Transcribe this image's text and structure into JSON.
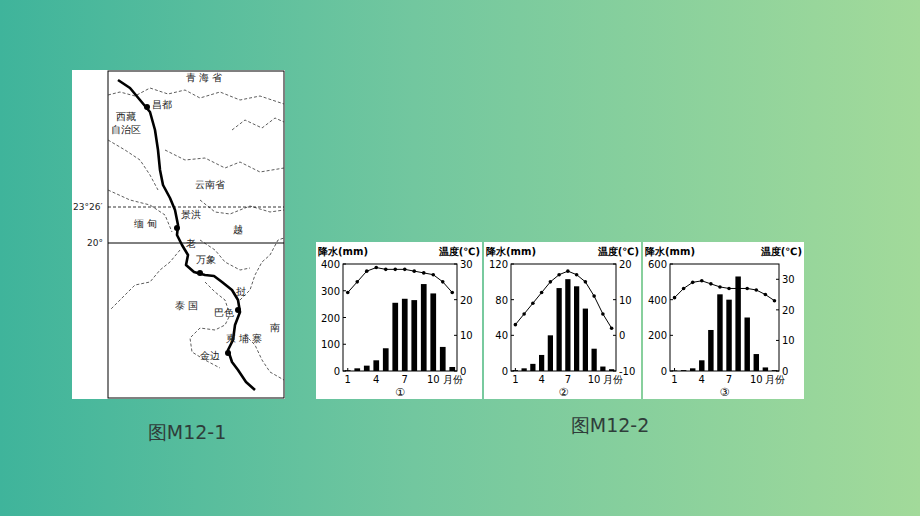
{
  "captions": [
    "图M12-1",
    "图M12-2"
  ],
  "map": {
    "labels": [
      "青 海 省",
      "昌都",
      "西藏",
      "自治区",
      "云南省",
      "缅 甸",
      "景洪",
      "越",
      "老",
      "万象",
      "泰 国",
      "挝",
      "巴色",
      "柬 埔 寨",
      "南",
      "金边"
    ],
    "latitudes": [
      "23°26′",
      "20°"
    ]
  },
  "chart_data": [
    {
      "type": "bar",
      "title": "①",
      "ylabel": "降水(mm)",
      "y2label": "温度(℃)",
      "xlabel": "月份",
      "categories": [
        "1",
        null,
        null,
        "4",
        null,
        null,
        "7",
        null,
        null,
        "10",
        null,
        null
      ],
      "ylim": [
        0,
        400
      ],
      "yticks": [
        0,
        100,
        200,
        300,
        400
      ],
      "y2lim": [
        0,
        30
      ],
      "y2ticks": [
        0,
        10,
        20,
        30
      ],
      "series": [
        {
          "name": "降水",
          "type": "bar",
          "color": "#000000",
          "values": [
            3,
            10,
            20,
            40,
            85,
            255,
            270,
            265,
            325,
            290,
            90,
            15
          ]
        },
        {
          "name": "温度",
          "type": "line",
          "axis": "y2",
          "color": "#000000",
          "marker": "circle",
          "values": [
            22,
            25,
            28,
            29,
            28.5,
            28.5,
            28.5,
            28,
            27.5,
            27,
            25,
            22
          ]
        }
      ]
    },
    {
      "type": "bar",
      "title": "②",
      "ylabel": "降水(mm)",
      "y2label": "温度(℃)",
      "xlabel": "月份",
      "categories": [
        "1",
        null,
        null,
        "4",
        null,
        null,
        "7",
        null,
        null,
        "10",
        null,
        null
      ],
      "ylim": [
        0,
        120
      ],
      "yticks": [
        0,
        40,
        80,
        120
      ],
      "y2lim": [
        -10,
        20
      ],
      "y2ticks": [
        -10,
        0,
        10,
        20
      ],
      "series": [
        {
          "name": "降水",
          "type": "bar",
          "color": "#000000",
          "values": [
            1,
            3,
            8,
            18,
            40,
            93,
            103,
            95,
            70,
            25,
            5,
            2
          ]
        },
        {
          "name": "温度",
          "type": "line",
          "axis": "y2",
          "color": "#000000",
          "marker": "circle",
          "values": [
            3,
            6,
            9,
            12,
            15,
            17,
            18,
            17,
            15,
            11,
            6,
            2
          ]
        }
      ]
    },
    {
      "type": "bar",
      "title": "③",
      "ylabel": "降水(mm)",
      "y2label": "温度(℃)",
      "xlabel": "月份",
      "categories": [
        "1",
        null,
        null,
        "4",
        null,
        null,
        "7",
        null,
        null,
        "10",
        null,
        null
      ],
      "ylim": [
        0,
        600
      ],
      "yticks": [
        0,
        200,
        400,
        600
      ],
      "y2lim": [
        0,
        35
      ],
      "y2ticks": [
        0,
        10,
        20,
        30
      ],
      "series": [
        {
          "name": "降水",
          "type": "bar",
          "color": "#000000",
          "values": [
            3,
            5,
            15,
            60,
            230,
            430,
            400,
            530,
            300,
            95,
            20,
            5
          ]
        },
        {
          "name": "温度",
          "type": "line",
          "axis": "y2",
          "color": "#000000",
          "marker": "circle",
          "values": [
            24,
            27,
            29,
            29.5,
            28.5,
            27.5,
            27,
            27,
            27,
            26.5,
            25,
            23
          ]
        }
      ]
    }
  ]
}
